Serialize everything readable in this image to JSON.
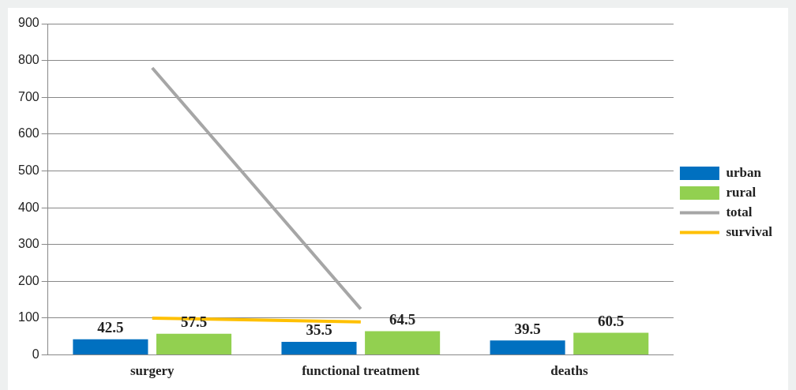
{
  "chart_data": {
    "type": "bar",
    "categories": [
      "surgery",
      "functional treatment",
      "deaths"
    ],
    "series": [
      {
        "name": "urban",
        "color": "#0070c0",
        "values": [
          42.5,
          35.5,
          39.5
        ],
        "value_labels": [
          "42.5",
          "35.5",
          "39.5"
        ]
      },
      {
        "name": "rural",
        "color": "#92d050",
        "values": [
          57.5,
          64.5,
          60.5
        ],
        "value_labels": [
          "57.5",
          "64.5",
          "60.5"
        ]
      },
      {
        "name": "total",
        "type": "line",
        "color": "#a6a6a6",
        "values": [
          780,
          125,
          null
        ]
      },
      {
        "name": "survival",
        "type": "line",
        "color": "#ffc000",
        "values": [
          100,
          90,
          null
        ]
      }
    ],
    "ylim": [
      0,
      900
    ],
    "yticks": [
      0,
      100,
      200,
      300,
      400,
      500,
      600,
      700,
      800,
      900
    ],
    "grid": "y",
    "legend": "right",
    "marker": "none"
  }
}
